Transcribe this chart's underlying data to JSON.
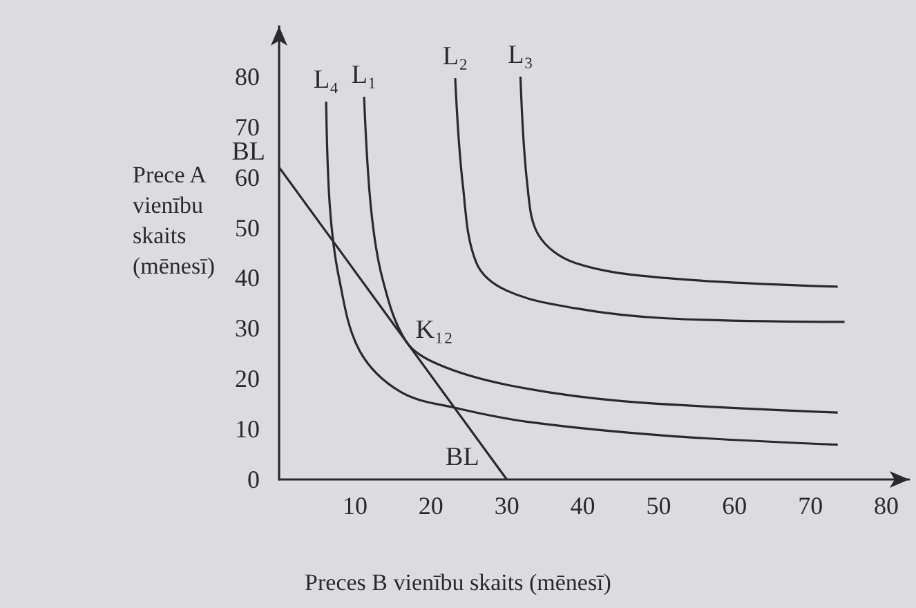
{
  "chart_data": {
    "type": "line",
    "xlabel": "Preces B vienību skaits (mēnesī)",
    "ylabel": "Prece A vienību skaits (mēnesī)",
    "xlim": [
      0,
      83
    ],
    "xticks": [
      10,
      20,
      30,
      40,
      50,
      60,
      70,
      80
    ],
    "ylim": [
      0,
      90
    ],
    "yticks": [
      0,
      10,
      20,
      30,
      40,
      50,
      60,
      70,
      80
    ],
    "grid": false,
    "legend": false,
    "series": [
      {
        "name": "L₄",
        "color": "#2a2a2a",
        "x": [
          6.2,
          6.7,
          7.9,
          10.6,
          16,
          23.3,
          33,
          51,
          73.6
        ],
        "values": [
          75,
          54,
          40,
          25.6,
          17.4,
          14.2,
          11.4,
          8.7,
          6.9
        ]
      },
      {
        "name": "L₁",
        "color": "#2a2a2a",
        "x": [
          11.2,
          12.1,
          13.6,
          16.7,
          20.9,
          30,
          45,
          73.6
        ],
        "values": [
          76,
          54,
          40,
          27.5,
          22.9,
          18.8,
          15.6,
          13.3
        ]
      },
      {
        "name": "L₂",
        "color": "#2a2a2a",
        "x": [
          23.2,
          24.2,
          26,
          30,
          39,
          51,
          74.5
        ],
        "values": [
          79.7,
          58.6,
          43,
          37.5,
          34,
          32,
          31.3
        ]
      },
      {
        "name": "L₃",
        "color": "#2a2a2a",
        "x": [
          31.8,
          32.7,
          34.2,
          39,
          51,
          73.6
        ],
        "values": [
          80,
          58.6,
          48.5,
          43,
          40,
          38.3
        ]
      },
      {
        "name": "BL",
        "color": "#2a2a2a",
        "x": [
          0,
          30
        ],
        "values": [
          62,
          0
        ]
      }
    ],
    "annotations": [
      {
        "text": "K₁₂",
        "x": 16.7,
        "y": 28
      }
    ]
  }
}
